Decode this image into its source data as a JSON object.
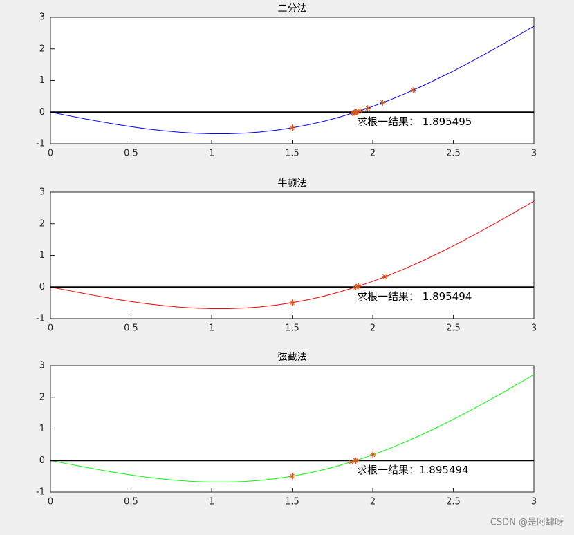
{
  "chart_data": [
    {
      "type": "line",
      "title": "二分法",
      "annotation": "求根一结果： 1.895495",
      "x": [
        0,
        0.1,
        0.2,
        0.3,
        0.4,
        0.5,
        0.6,
        0.7,
        0.8,
        0.9,
        1.0,
        1.1,
        1.2,
        1.3,
        1.4,
        1.5,
        1.6,
        1.7,
        1.8,
        1.9,
        2.0,
        2.1,
        2.2,
        2.3,
        2.4,
        2.5,
        2.6,
        2.7,
        2.8,
        2.9,
        3.0
      ],
      "series": [
        {
          "color": "#0000ff",
          "values": [
            0,
            -0.0997,
            -0.1973,
            -0.291,
            -0.3788,
            -0.4589,
            -0.5293,
            -0.5884,
            -0.6347,
            -0.6667,
            -0.6829,
            -0.6824,
            -0.6641,
            -0.6271,
            -0.5709,
            -0.495,
            -0.3992,
            -0.2833,
            -0.1477,
            0.0074,
            0.1814,
            0.3736,
            0.5829,
            0.8085,
            1.049,
            1.303,
            1.5689,
            1.8452,
            2.13,
            2.4216,
            2.7178
          ]
        }
      ],
      "points": {
        "color": "#d95319",
        "x": [
          1.5,
          2.25,
          1.875,
          2.0625,
          1.96875,
          1.921875,
          1.8984375,
          1.88671875,
          1.892578,
          1.895508
        ],
        "values": [
          -0.495,
          0.6938,
          -0.033,
          0.2997,
          0.1252,
          0.0443,
          0.0051,
          -0.0142,
          -0.0046,
          0.0
        ]
      },
      "hline": 0,
      "xlim": [
        0,
        3
      ],
      "ylim": [
        -1,
        3
      ],
      "xticks": [
        0,
        0.5,
        1,
        1.5,
        2,
        2.5,
        3
      ],
      "yticks": [
        -1,
        0,
        1,
        2,
        3
      ]
    },
    {
      "type": "line",
      "title": "牛顿法",
      "annotation": "求根一结果： 1.895494",
      "x": [
        0,
        0.1,
        0.2,
        0.3,
        0.4,
        0.5,
        0.6,
        0.7,
        0.8,
        0.9,
        1.0,
        1.1,
        1.2,
        1.3,
        1.4,
        1.5,
        1.6,
        1.7,
        1.8,
        1.9,
        2.0,
        2.1,
        2.2,
        2.3,
        2.4,
        2.5,
        2.6,
        2.7,
        2.8,
        2.9,
        3.0
      ],
      "series": [
        {
          "color": "#ff0000",
          "values": [
            0,
            -0.0997,
            -0.1973,
            -0.291,
            -0.3788,
            -0.4589,
            -0.5293,
            -0.5884,
            -0.6347,
            -0.6667,
            -0.6829,
            -0.6824,
            -0.6641,
            -0.6271,
            -0.5709,
            -0.495,
            -0.3992,
            -0.2833,
            -0.1477,
            0.0074,
            0.1814,
            0.3736,
            0.5829,
            0.8085,
            1.049,
            1.303,
            1.5689,
            1.8452,
            2.13,
            2.4216,
            2.7178
          ]
        }
      ],
      "points": {
        "color": "#d95319",
        "x": [
          1.5,
          2.0766,
          1.9106,
          1.8956
        ],
        "values": [
          -0.495,
          0.3268,
          0.025,
          0.0002
        ]
      },
      "hline": 0,
      "xlim": [
        0,
        3
      ],
      "ylim": [
        -1,
        3
      ],
      "xticks": [
        0,
        0.5,
        1,
        1.5,
        2,
        2.5,
        3
      ],
      "yticks": [
        -1,
        0,
        1,
        2,
        3
      ]
    },
    {
      "type": "line",
      "title": "弦截法",
      "annotation": "求根一结果：1.895494",
      "x": [
        0,
        0.1,
        0.2,
        0.3,
        0.4,
        0.5,
        0.6,
        0.7,
        0.8,
        0.9,
        1.0,
        1.1,
        1.2,
        1.3,
        1.4,
        1.5,
        1.6,
        1.7,
        1.8,
        1.9,
        2.0,
        2.1,
        2.2,
        2.3,
        2.4,
        2.5,
        2.6,
        2.7,
        2.8,
        2.9,
        3.0
      ],
      "series": [
        {
          "color": "#00ff00",
          "values": [
            0,
            -0.0997,
            -0.1973,
            -0.291,
            -0.3788,
            -0.4589,
            -0.5293,
            -0.5884,
            -0.6347,
            -0.6667,
            -0.6829,
            -0.6824,
            -0.6641,
            -0.6271,
            -0.5709,
            -0.495,
            -0.3992,
            -0.2833,
            -0.1477,
            0.0074,
            0.1814,
            0.3736,
            0.5829,
            0.8085,
            1.049,
            1.303,
            1.5689,
            1.8452,
            2.13,
            2.4216,
            2.7178
          ]
        }
      ],
      "points": {
        "color": "#d95319",
        "x": [
          1.5,
          2.0,
          1.8659,
          1.8939,
          1.8955
        ],
        "values": [
          -0.495,
          0.1814,
          -0.0479,
          -0.0027,
          0.0
        ]
      },
      "hline": 0,
      "xlim": [
        0,
        3
      ],
      "ylim": [
        -1,
        3
      ],
      "xticks": [
        0,
        0.5,
        1,
        1.5,
        2,
        2.5,
        3
      ],
      "yticks": [
        -1,
        0,
        1,
        2,
        3
      ]
    }
  ],
  "watermark": "CSDN @是阿肆呀"
}
